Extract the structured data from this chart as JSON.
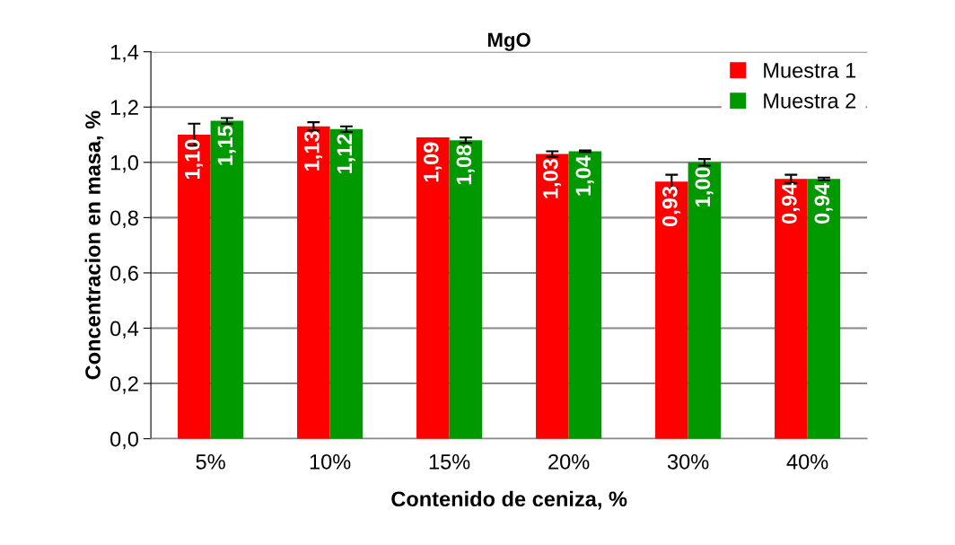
{
  "chart_data": {
    "type": "bar",
    "title": "MgO",
    "xlabel": "Contenido de ceniza, %",
    "ylabel": "Concentracion en masa, %",
    "categories": [
      "5%",
      "10%",
      "15%",
      "20%",
      "30%",
      "40%"
    ],
    "series": [
      {
        "name": "Muestra 1",
        "color": "#ff0000",
        "values": [
          1.1,
          1.13,
          1.09,
          1.03,
          0.93,
          0.94
        ],
        "errors": [
          0.04,
          0.015,
          null,
          0.01,
          0.025,
          0.015
        ],
        "value_labels": [
          "1,10",
          "1,13",
          "1,09",
          "1,03",
          "0,93",
          "0,94"
        ]
      },
      {
        "name": "Muestra 2",
        "color": "#009900",
        "values": [
          1.15,
          1.12,
          1.08,
          1.04,
          1.0,
          0.94
        ],
        "errors": [
          0.01,
          0.01,
          0.01,
          0.003,
          0.012,
          0.005
        ],
        "value_labels": [
          "1,15",
          "1,12",
          "1,08",
          "1,04",
          "1,00",
          "0,94"
        ]
      }
    ],
    "ylim": [
      0,
      1.4
    ],
    "yticks": [
      {
        "value": 0,
        "label": "0,0"
      },
      {
        "value": 0.2,
        "label": "0,2"
      },
      {
        "value": 0.4,
        "label": "0,4"
      },
      {
        "value": 0.6,
        "label": "0,6"
      },
      {
        "value": 0.8,
        "label": "0,8"
      },
      {
        "value": 1.0,
        "label": "1,0"
      },
      {
        "value": 1.2,
        "label": "1,2"
      },
      {
        "value": 1.4,
        "label": "1,4"
      }
    ],
    "grid": "y",
    "legend": "top right"
  }
}
